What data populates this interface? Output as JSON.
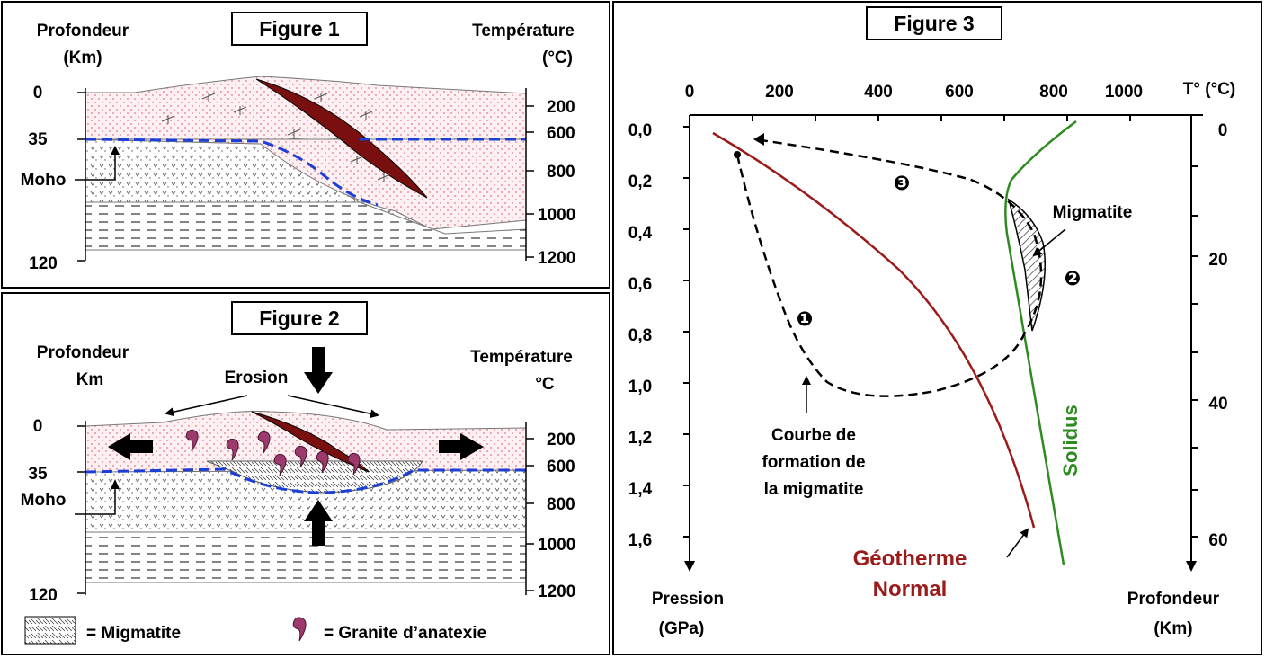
{
  "figure1": {
    "title": "Figure 1",
    "depth_label_1": "Profondeur",
    "depth_label_2": "(Km)",
    "temp_label_1": "Température",
    "temp_label_2": "(°C)",
    "depth_ticks": [
      "0",
      "35",
      "120"
    ],
    "temp_ticks": [
      "200",
      "600",
      "800",
      "1000",
      "1200"
    ],
    "moho_label": "Moho"
  },
  "figure2": {
    "title": "Figure 2",
    "depth_label_1": "Profondeur",
    "depth_label_2": "Km",
    "temp_label_1": "Température",
    "temp_label_2": "°C",
    "depth_ticks": [
      "0",
      "35",
      "120"
    ],
    "temp_ticks": [
      "200",
      "600",
      "800",
      "1000",
      "1200"
    ],
    "moho_label": "Moho",
    "erosion_label": "Erosion"
  },
  "legend": {
    "migmatite": "= Migmatite",
    "granite": "= Granite d’anatexie"
  },
  "figure3": {
    "title": "Figure 3",
    "temp_axis_label": "T° (°C)",
    "temp_ticks": [
      "0",
      "200",
      "400",
      "600",
      "800",
      "1000"
    ],
    "pressure_ticks": [
      "0,0",
      "0,2",
      "0,4",
      "0,6",
      "0,8",
      "1,0",
      "1,2",
      "1,4",
      "1,6"
    ],
    "depth_ticks": [
      "0",
      "20",
      "40",
      "60"
    ],
    "pressure_label_1": "Pression",
    "pressure_label_2": "(GPa)",
    "depth_label_1": "Profondeur",
    "depth_label_2": "(Km)",
    "migmatite_label": "Migmatite",
    "solidus_label": "Solidus",
    "geotherme_label_1": "Géotherme",
    "geotherme_label_2": "Normal",
    "courbe_label_1": "Courbe de",
    "courbe_label_2": "formation de",
    "courbe_label_3": "la migmatite",
    "marker_1": "❶",
    "marker_2": "❷",
    "marker_3": "❸"
  },
  "colors": {
    "geotherme": "#9b1b1b",
    "solidus": "#2e8b1f",
    "moho": "#1c3fd6",
    "slab": "#7a0f0f",
    "granite": "#9c3a6c"
  }
}
